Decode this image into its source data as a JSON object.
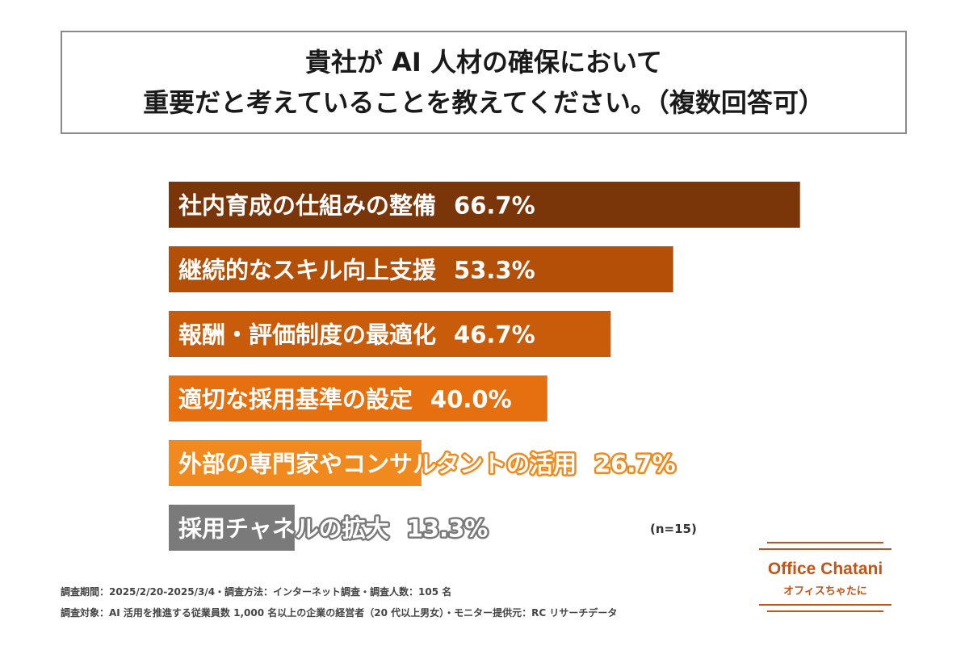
{
  "header": {
    "title_line1": "貴社が AI 人材の確保において",
    "title_line2": "重要だと考えていることを教えてください。（複数回答可）"
  },
  "chart_data": {
    "type": "bar",
    "orientation": "horizontal",
    "title": "貴社が AI 人材の確保において重要だと考えていることを教えてください。（複数回答可）",
    "categories": [
      "社内育成の仕組みの整備",
      "継続的なスキル向上支援",
      "報酬・評価制度の最適化",
      "適切な採用基準の設定",
      "外部の専門家やコンサルタントの活用",
      "採用チャネルの拡大"
    ],
    "values": [
      66.7,
      53.3,
      46.7,
      40.0,
      26.7,
      13.3
    ],
    "value_labels": [
      "66.7%",
      "53.3%",
      "46.7%",
      "40.0%",
      "26.7%",
      "13.3%"
    ],
    "colors": [
      "#7a3508",
      "#b44f07",
      "#c85c0a",
      "#e6700f",
      "#f08a1e",
      "#7a7a7a"
    ],
    "unit": "%",
    "xlim": [
      0,
      100
    ],
    "grid": false,
    "legend": "none",
    "n_label": "(n=15)"
  },
  "footnotes": {
    "line1": "調査期間：2025/2/20-2025/3/4・調査方法：インターネット調査・調査人数：105 名",
    "line2": "調査対象：AI 活用を推進する従業員数 1,000 名以上の企業の経営者（20 代以上男女）・モニター提供元：RC リサーチデータ"
  },
  "logo": {
    "main": "Office Chatani",
    "sub": "オフィスちゃたに"
  }
}
